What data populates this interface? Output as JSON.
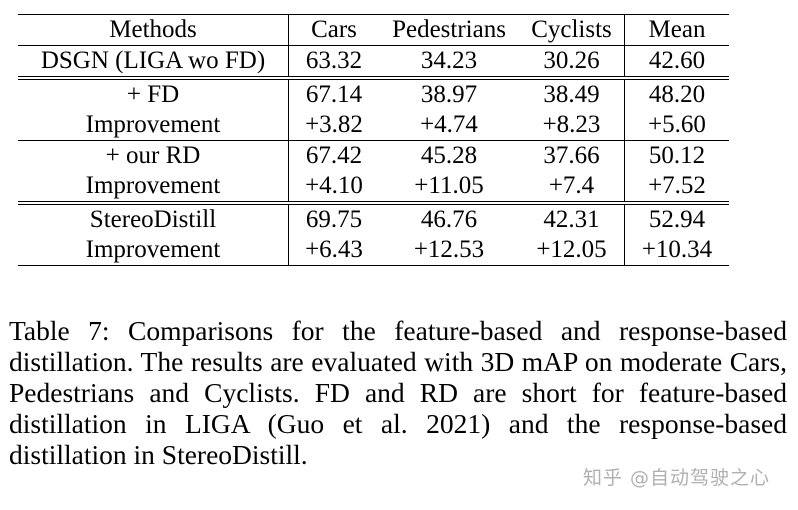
{
  "table": {
    "header": [
      "Methods",
      "Cars",
      "Pedestrians",
      "Cyclists",
      "Mean"
    ],
    "rows": [
      {
        "method": "DSGN (LIGA wo FD)",
        "cars": "63.32",
        "ped": "34.23",
        "cyc": "30.26",
        "mean": "42.60"
      },
      {
        "method": "+ FD",
        "cars": "67.14",
        "ped": "38.97",
        "cyc": "38.49",
        "mean": "48.20"
      },
      {
        "method": "Improvement",
        "cars": "+3.82",
        "ped": "+4.74",
        "cyc": "+8.23",
        "mean": "+5.60"
      },
      {
        "method": "+ our RD",
        "cars": "67.42",
        "ped": "45.28",
        "cyc": "37.66",
        "mean": "50.12"
      },
      {
        "method": "Improvement",
        "cars": "+4.10",
        "ped": "+11.05",
        "cyc": "+7.4",
        "mean": "+7.52"
      },
      {
        "method": "StereoDistill",
        "cars": "69.75",
        "ped": "46.76",
        "cyc": "42.31",
        "mean": "52.94"
      },
      {
        "method": "Improvement",
        "cars": "+6.43",
        "ped": "+12.53",
        "cyc": "+12.05",
        "mean": "+10.34"
      }
    ]
  },
  "caption": "Table 7: Comparisons for the feature-based and response-based distillation. The results are evaluated with 3D mAP on moderate Cars, Pedestrians and Cyclists. FD and RD are short for feature-based distillation in LIGA (Guo et al. 2021) and the response-based distillation in StereoDistill.",
  "watermark": "知乎 @自动驾驶之心"
}
